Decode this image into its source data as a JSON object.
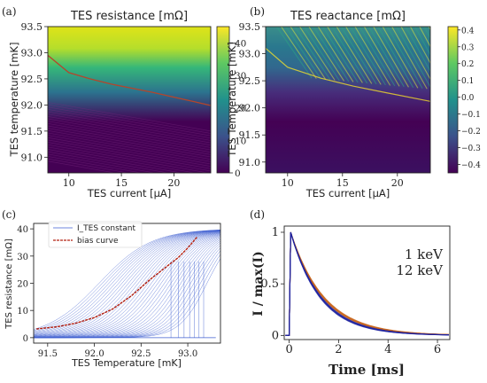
{
  "panels": [
    {
      "letter": "(a)",
      "type": "heatmap",
      "title": "TES resistance [mΩ]",
      "xlabel": "TES current [μA]",
      "ylabel": "TES temperature [mK]",
      "xlim": [
        8,
        23.5
      ],
      "ylim": [
        90.7,
        93.5
      ],
      "xticks": [
        "10",
        "15",
        "20"
      ],
      "yticks": [
        "91.0",
        "91.5",
        "92.0",
        "92.5",
        "93.0",
        "93.5"
      ],
      "colorbar": {
        "range": [
          0,
          45
        ],
        "ticks": [
          "0",
          "10",
          "20",
          "30",
          "40"
        ]
      },
      "transition_curve": {
        "current": [
          8,
          10,
          12,
          14,
          16,
          18,
          20,
          22,
          23.5
        ],
        "temperature": [
          92.95,
          92.62,
          92.5,
          92.4,
          92.32,
          92.24,
          92.15,
          92.06,
          91.99
        ]
      }
    },
    {
      "letter": "(b)",
      "type": "heatmap",
      "title": "TES reactance [mΩ]",
      "xlabel": "TES current [μA]",
      "ylabel": "TES Temperature [mK]",
      "xlim": [
        8,
        23
      ],
      "ylim": [
        90.8,
        93.5
      ],
      "xticks": [
        "10",
        "15",
        "20"
      ],
      "yticks": [
        "91.0",
        "91.5",
        "92.0",
        "92.5",
        "93.0",
        "93.5"
      ],
      "colorbar": {
        "range": [
          -0.45,
          0.42
        ],
        "ticks": [
          "0.4",
          "0.3",
          "0.2",
          "0.1",
          "0.0",
          "−0.1",
          "−0.2",
          "−0.3",
          "−0.4"
        ]
      }
    },
    {
      "letter": "(c)",
      "type": "line",
      "xlabel": "TES Temperature [mK]",
      "ylabel": "TES resistance [mΩ]",
      "xlim": [
        91.35,
        93.35
      ],
      "ylim": [
        -2,
        42
      ],
      "xticks": [
        "91.5",
        "92.0",
        "92.5",
        "93.0"
      ],
      "yticks": [
        "0",
        "10",
        "20",
        "30",
        "40"
      ],
      "legend": {
        "constant_label": "I_TES constant",
        "bias_label": "bias curve",
        "placement": "top-left"
      },
      "bias_curve": {
        "temperature": [
          91.38,
          91.6,
          91.8,
          92.0,
          92.2,
          92.4,
          92.6,
          92.75,
          92.9,
          93.0,
          93.1
        ],
        "resistance": [
          3.2,
          4.0,
          5.3,
          7.4,
          10.6,
          15.5,
          21.5,
          25.5,
          29.5,
          33.0,
          37.0
        ]
      }
    },
    {
      "letter": "(d)",
      "type": "line",
      "xlabel": "Time [ms]",
      "ylabel": "I / max(I)",
      "xlim": [
        -0.2,
        6.5
      ],
      "ylim": [
        -0.04,
        1.06
      ],
      "xticks": [
        "0",
        "2",
        "4",
        "6"
      ],
      "yticks": [
        "0",
        "0.5",
        "1"
      ],
      "series": [
        {
          "name": "1 keV",
          "color": "#c8641a",
          "decay_time_ms": 1.33
        },
        {
          "name": "12 keV",
          "color": "#1e22a0",
          "decay_time_ms": 1.22
        }
      ]
    }
  ]
}
